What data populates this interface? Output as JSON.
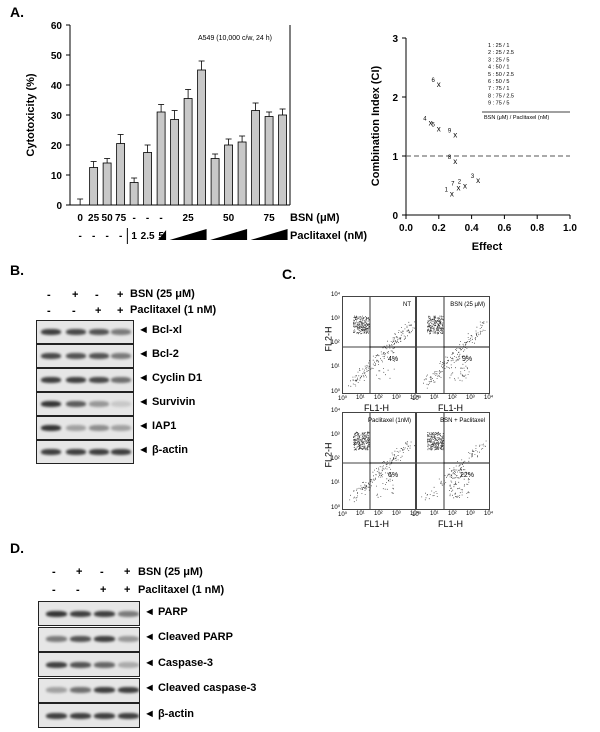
{
  "panels": {
    "a": "A.",
    "b": "B.",
    "c": "C.",
    "d": "D."
  },
  "chart_data": [
    {
      "type": "bar",
      "ylabel": "Cytotoxicity (%)",
      "ylim": [
        0,
        60
      ],
      "yticks": [
        "0",
        "10",
        "20",
        "30",
        "40",
        "50",
        "60"
      ],
      "annotation": "A549  (10,000 c/w, 24 h)",
      "bsn_row_label": "BSN (μM)",
      "pac_row_label": "Paclitaxel (nM)",
      "bsn_labels": [
        "0",
        "25",
        "50",
        "75",
        "-",
        "-",
        "-",
        "25",
        "50",
        "75"
      ],
      "pac_labels": [
        "-",
        "-",
        "-",
        "-",
        "1",
        "2.5",
        "5"
      ],
      "values": [
        0,
        12.5,
        14,
        20.5,
        7.5,
        17.5,
        31,
        28.5,
        35.5,
        45,
        15.5,
        20,
        21,
        31.5,
        29.5,
        30
      ],
      "errors": [
        2,
        2,
        1.5,
        3,
        1.5,
        2.5,
        2.5,
        3,
        3,
        3,
        1.5,
        2,
        2,
        2.5,
        1.5,
        2
      ]
    },
    {
      "type": "scatter",
      "xlabel": "Effect",
      "ylabel": "Combination Index (CI)",
      "xlim": [
        0,
        1.0
      ],
      "ylim": [
        0,
        3
      ],
      "xticks": [
        "0.0",
        "0.2",
        "0.4",
        "0.6",
        "0.8",
        "1.0"
      ],
      "yticks": [
        "0",
        "1",
        "2",
        "3"
      ],
      "reference_line": 1,
      "points": [
        {
          "label": "1",
          "x": 0.28,
          "y": 0.35
        },
        {
          "label": "2",
          "x": 0.36,
          "y": 0.48
        },
        {
          "label": "3",
          "x": 0.44,
          "y": 0.58
        },
        {
          "label": "4",
          "x": 0.15,
          "y": 1.55
        },
        {
          "label": "5",
          "x": 0.2,
          "y": 1.45
        },
        {
          "label": "6",
          "x": 0.2,
          "y": 2.2
        },
        {
          "label": "7",
          "x": 0.32,
          "y": 0.45
        },
        {
          "label": "8",
          "x": 0.3,
          "y": 0.9
        },
        {
          "label": "9",
          "x": 0.3,
          "y": 1.35
        }
      ],
      "legend": [
        "1 : 25 / 1",
        "2 : 25 / 2.5",
        "3 : 25 / 5",
        "4 : 50 / 1",
        "5 : 50 / 2.5",
        "6 : 50 / 5",
        "7 : 75 / 1",
        "8 : 75 / 2.5",
        "9 : 75 / 5"
      ],
      "legend_footer": "BSN (μM) / Paclitaxel (nM)"
    }
  ],
  "blot_b": {
    "bsn_label": "BSN (25 μM)",
    "pac_label": "Paclitaxel (1 nM)",
    "bsn_signs": [
      "-",
      "+",
      "-",
      "+"
    ],
    "pac_signs": [
      "-",
      "-",
      "+",
      "+"
    ],
    "rows": [
      {
        "name": "◄ Bcl-xl",
        "levels": [
          0.85,
          0.8,
          0.75,
          0.55
        ]
      },
      {
        "name": "◄ Bcl-2",
        "levels": [
          0.8,
          0.75,
          0.75,
          0.55
        ]
      },
      {
        "name": "◄ Cyclin D1",
        "levels": [
          0.85,
          0.85,
          0.8,
          0.6
        ]
      },
      {
        "name": "◄ Survivin",
        "levels": [
          0.9,
          0.7,
          0.4,
          0.15
        ]
      },
      {
        "name": "◄ IAP1",
        "levels": [
          0.9,
          0.35,
          0.45,
          0.35
        ]
      },
      {
        "name": "◄ β-actin",
        "levels": [
          0.85,
          0.85,
          0.85,
          0.85
        ]
      }
    ]
  },
  "flow_c": {
    "ylabel": "FL2-H",
    "xlabel": "FL1-H",
    "ticks": [
      "10⁰",
      "10¹",
      "10²",
      "10³",
      "10⁴"
    ],
    "plots": [
      {
        "title": "NT",
        "percent": "4%"
      },
      {
        "title": "BSN (25 μM)",
        "percent": "9%"
      },
      {
        "title": "Paclitaxel  (1nM)",
        "percent": "6%"
      },
      {
        "title": "BSN + Paclitaxel",
        "percent": "22%"
      }
    ]
  },
  "blot_d": {
    "bsn_label": "BSN (25 μM)",
    "pac_label": "Paclitaxel (1 nM)",
    "bsn_signs": [
      "-",
      "+",
      "-",
      "+"
    ],
    "pac_signs": [
      "-",
      "-",
      "+",
      "+"
    ],
    "rows": [
      {
        "name": "◄ PARP",
        "levels": [
          0.9,
          0.85,
          0.85,
          0.55
        ]
      },
      {
        "name": "◄ Cleaved PARP",
        "levels": [
          0.55,
          0.75,
          0.85,
          0.4
        ]
      },
      {
        "name": "◄ Caspase-3",
        "levels": [
          0.85,
          0.75,
          0.65,
          0.3
        ]
      },
      {
        "name": "◄ Cleaved caspase-3",
        "levels": [
          0.35,
          0.6,
          0.85,
          0.85
        ]
      },
      {
        "name": "◄ β-actin",
        "levels": [
          0.85,
          0.85,
          0.85,
          0.85
        ]
      }
    ]
  }
}
